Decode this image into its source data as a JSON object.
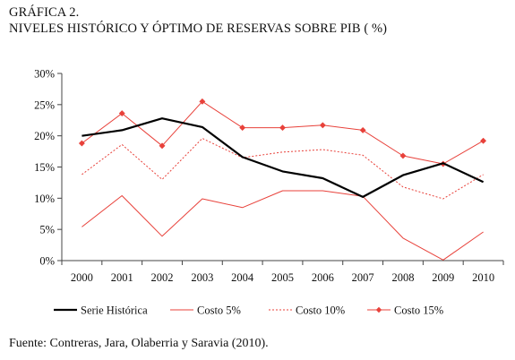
{
  "title": {
    "line1": "GRÁFICA 2.",
    "line2": "NIVELES HISTÓRICO Y ÓPTIMO DE RESERVAS SOBRE PIB ( %)"
  },
  "source": "Fuente: Contreras, Jara, Olaberria y Saravia (2010).",
  "chart_data": {
    "type": "line",
    "x": [
      2000,
      2001,
      2002,
      2003,
      2004,
      2005,
      2006,
      2007,
      2008,
      2009,
      2010
    ],
    "x_tick_labels": [
      "2000",
      "2001",
      "2002",
      "2003",
      "2004",
      "2005",
      "2006",
      "2007",
      "2008",
      "2009",
      "2010"
    ],
    "ylim": [
      0,
      30
    ],
    "y_ticks": [
      0,
      5,
      10,
      15,
      20,
      25,
      30
    ],
    "y_tick_labels": [
      "0%",
      "5%",
      "10%",
      "15%",
      "20%",
      "25%",
      "30%"
    ],
    "grid": false,
    "legend_position": "bottom",
    "series": [
      {
        "name": "Serie Histórica",
        "style": "solid-thick",
        "color": "#000000",
        "values": [
          20.0,
          20.9,
          22.8,
          21.4,
          16.6,
          14.3,
          13.2,
          10.2,
          13.7,
          15.6,
          12.6
        ]
      },
      {
        "name": "Costo 5%",
        "style": "solid-thin",
        "color": "#e8413a",
        "values": [
          5.4,
          10.4,
          3.9,
          9.9,
          8.5,
          11.2,
          11.2,
          10.3,
          3.6,
          0.1,
          4.6
        ]
      },
      {
        "name": "Costo 10%",
        "style": "dotted",
        "color": "#e8413a",
        "values": [
          13.8,
          18.6,
          13.0,
          19.6,
          16.5,
          17.4,
          17.8,
          16.9,
          11.8,
          9.9,
          13.8
        ]
      },
      {
        "name": "Costo 15%",
        "style": "solid-markers",
        "color": "#e8413a",
        "values": [
          18.8,
          23.6,
          18.4,
          25.5,
          21.3,
          21.3,
          21.7,
          20.9,
          16.8,
          15.5,
          19.2
        ]
      }
    ]
  }
}
